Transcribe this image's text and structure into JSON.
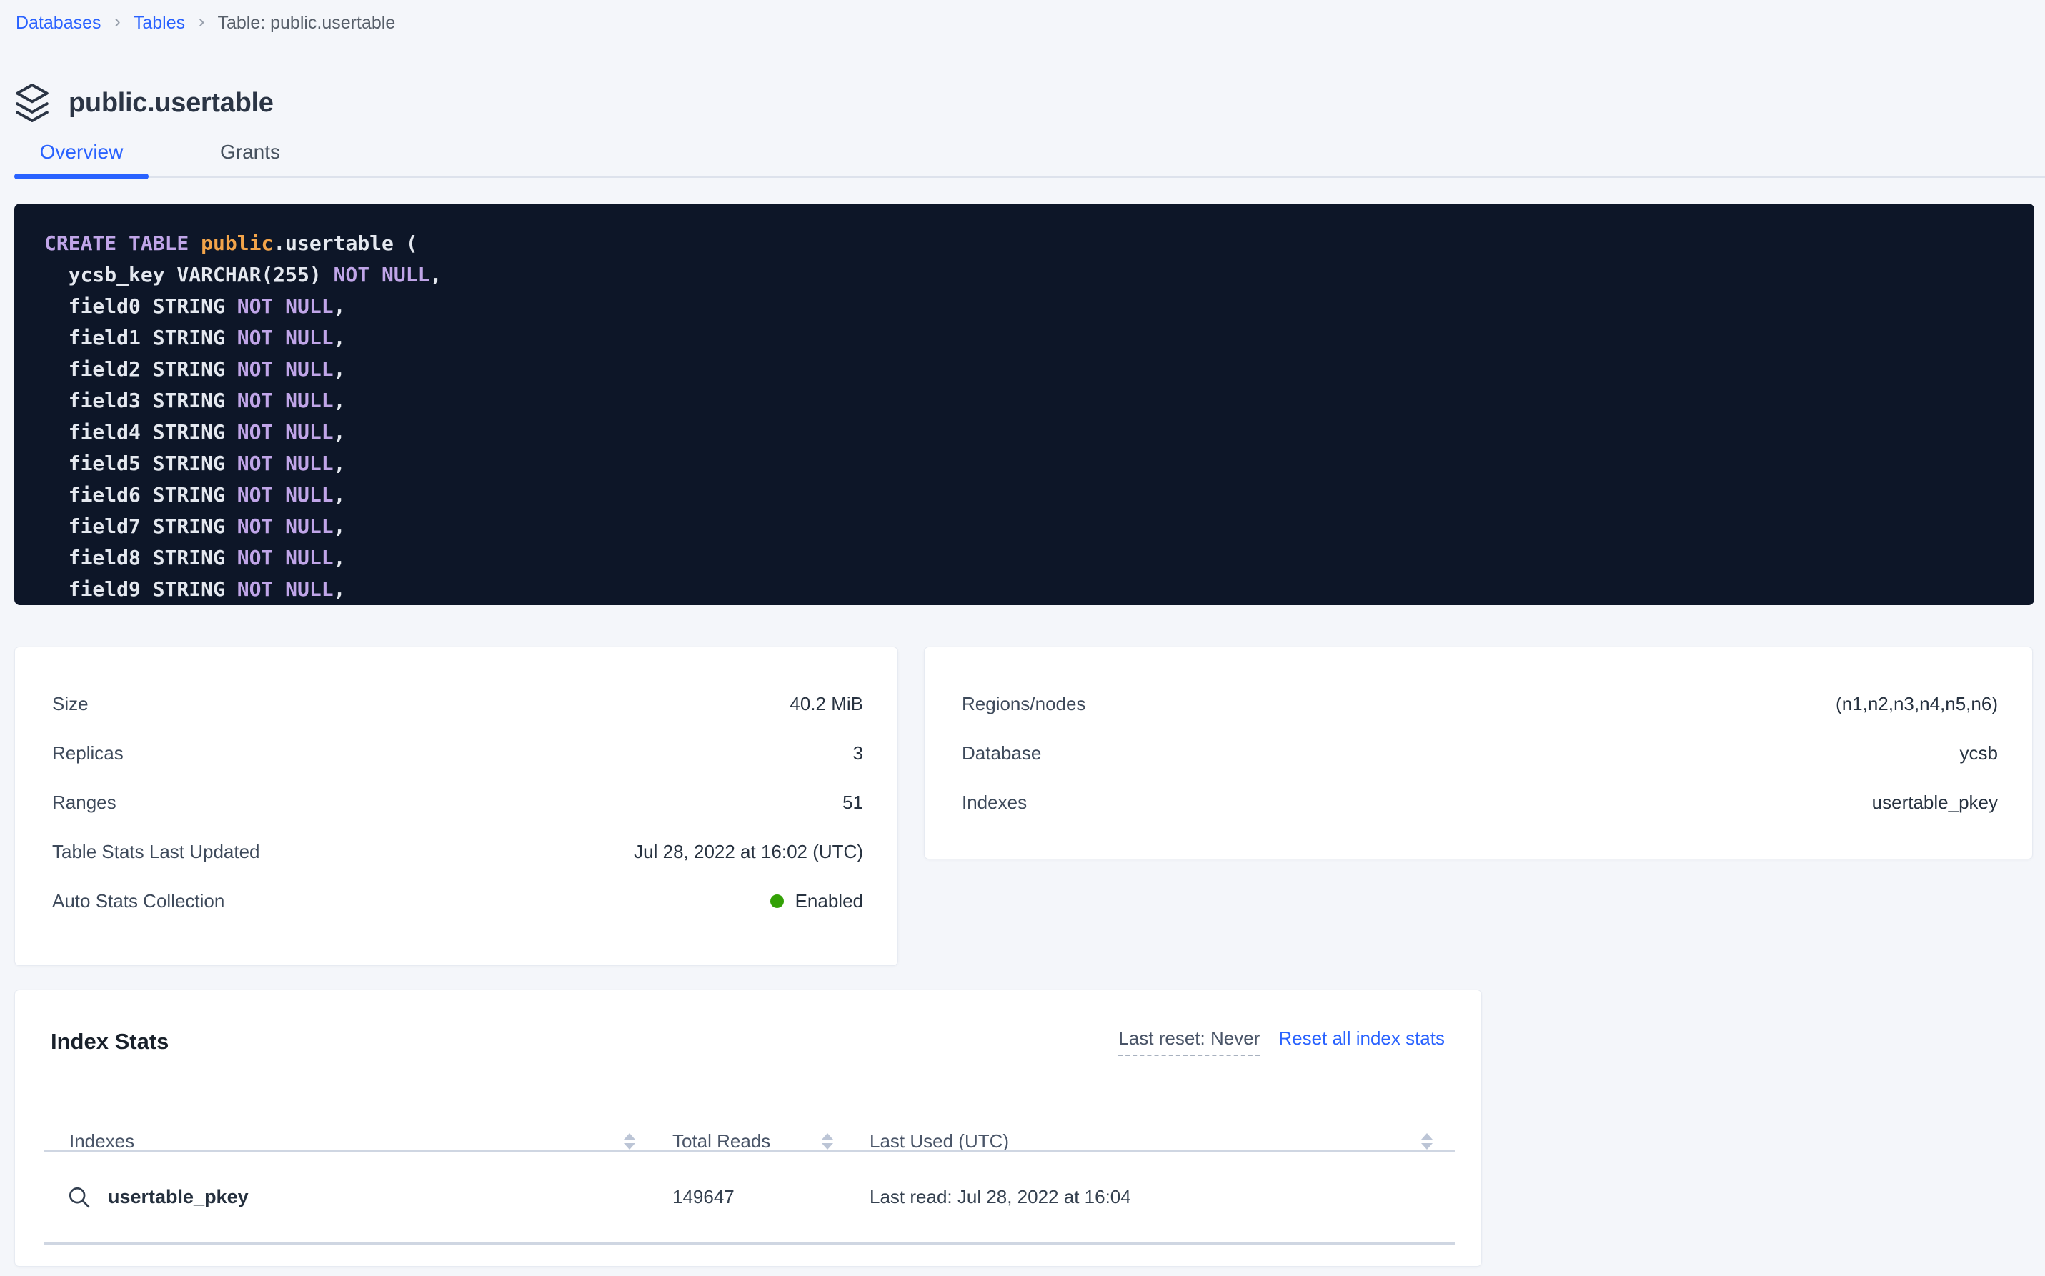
{
  "breadcrumb": {
    "items": [
      {
        "label": "Databases",
        "link": true
      },
      {
        "label": "Tables",
        "link": true
      },
      {
        "label": "Table: public.usertable",
        "link": false
      }
    ],
    "separator": "›"
  },
  "header": {
    "title": "public.usertable",
    "icon": "layers-icon"
  },
  "tabs": [
    {
      "label": "Overview",
      "active": true
    },
    {
      "label": "Grants",
      "active": false
    }
  ],
  "sql": {
    "token_colors": {
      "keyword": "#c0a5e8",
      "schema": "#f2a44a",
      "plain": "#e4e8ef"
    },
    "background": "#0d1628",
    "lines": [
      [
        {
          "t": "CREATE TABLE ",
          "c": "keyword"
        },
        {
          "t": "public",
          "c": "schema"
        },
        {
          "t": ".usertable (",
          "c": "plain"
        }
      ],
      [
        {
          "t": "  ycsb_key VARCHAR(255) ",
          "c": "plain"
        },
        {
          "t": "NOT NULL",
          "c": "keyword"
        },
        {
          "t": ",",
          "c": "plain"
        }
      ],
      [
        {
          "t": "  field0 STRING ",
          "c": "plain"
        },
        {
          "t": "NOT NULL",
          "c": "keyword"
        },
        {
          "t": ",",
          "c": "plain"
        }
      ],
      [
        {
          "t": "  field1 STRING ",
          "c": "plain"
        },
        {
          "t": "NOT NULL",
          "c": "keyword"
        },
        {
          "t": ",",
          "c": "plain"
        }
      ],
      [
        {
          "t": "  field2 STRING ",
          "c": "plain"
        },
        {
          "t": "NOT NULL",
          "c": "keyword"
        },
        {
          "t": ",",
          "c": "plain"
        }
      ],
      [
        {
          "t": "  field3 STRING ",
          "c": "plain"
        },
        {
          "t": "NOT NULL",
          "c": "keyword"
        },
        {
          "t": ",",
          "c": "plain"
        }
      ],
      [
        {
          "t": "  field4 STRING ",
          "c": "plain"
        },
        {
          "t": "NOT NULL",
          "c": "keyword"
        },
        {
          "t": ",",
          "c": "plain"
        }
      ],
      [
        {
          "t": "  field5 STRING ",
          "c": "plain"
        },
        {
          "t": "NOT NULL",
          "c": "keyword"
        },
        {
          "t": ",",
          "c": "plain"
        }
      ],
      [
        {
          "t": "  field6 STRING ",
          "c": "plain"
        },
        {
          "t": "NOT NULL",
          "c": "keyword"
        },
        {
          "t": ",",
          "c": "plain"
        }
      ],
      [
        {
          "t": "  field7 STRING ",
          "c": "plain"
        },
        {
          "t": "NOT NULL",
          "c": "keyword"
        },
        {
          "t": ",",
          "c": "plain"
        }
      ],
      [
        {
          "t": "  field8 STRING ",
          "c": "plain"
        },
        {
          "t": "NOT NULL",
          "c": "keyword"
        },
        {
          "t": ",",
          "c": "plain"
        }
      ],
      [
        {
          "t": "  field9 STRING ",
          "c": "plain"
        },
        {
          "t": "NOT NULL",
          "c": "keyword"
        },
        {
          "t": ",",
          "c": "plain"
        }
      ]
    ]
  },
  "details_left": {
    "rows": [
      {
        "label": "Size",
        "value": "40.2 MiB"
      },
      {
        "label": "Replicas",
        "value": "3"
      },
      {
        "label": "Ranges",
        "value": "51"
      },
      {
        "label": "Table Stats Last Updated",
        "value": "Jul 28, 2022 at 16:02 (UTC)"
      },
      {
        "label": "Auto Stats Collection",
        "value": "Enabled",
        "status": "enabled",
        "status_color": "#33a106"
      }
    ]
  },
  "details_right": {
    "rows": [
      {
        "label": "Regions/nodes",
        "value": "(n1,n2,n3,n4,n5,n6)"
      },
      {
        "label": "Database",
        "value": "ycsb"
      },
      {
        "label": "Indexes",
        "value": "usertable_pkey"
      }
    ]
  },
  "index_stats": {
    "title": "Index Stats",
    "last_reset": "Last reset: Never",
    "reset_link": "Reset all index stats",
    "columns": {
      "indexes": "Indexes",
      "total_reads": "Total Reads",
      "last_used": "Last Used (UTC)"
    },
    "rows": [
      {
        "index_name": "usertable_pkey",
        "total_reads": "149647",
        "last_used": "Last read: Jul 28, 2022 at 16:04",
        "icon": "search-icon"
      }
    ]
  },
  "colors": {
    "accent_blue": "#2962ff",
    "page_background": "#f4f6fa",
    "status_green": "#33a106",
    "code_background": "#0d1628"
  }
}
